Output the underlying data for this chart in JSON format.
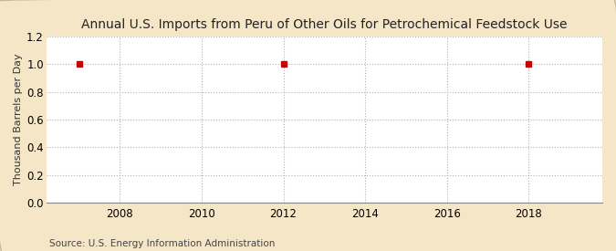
{
  "title": "Annual U.S. Imports from Peru of Other Oils for Petrochemical Feedstock Use",
  "ylabel": "Thousand Barrels per Day",
  "source": "Source: U.S. Energy Information Administration",
  "xlim": [
    2006.2,
    2019.8
  ],
  "ylim": [
    0.0,
    1.2
  ],
  "yticks": [
    0.0,
    0.2,
    0.4,
    0.6,
    0.8,
    1.0,
    1.2
  ],
  "xticks": [
    2008,
    2010,
    2012,
    2014,
    2016,
    2018
  ],
  "data_x": [
    2007,
    2012,
    2018
  ],
  "data_y": [
    1.0,
    1.0,
    1.0
  ],
  "marker_color": "#cc0000",
  "marker": "s",
  "marker_size": 4,
  "fig_background_color": "#f5e6c8",
  "plot_background_color": "#ffffff",
  "grid_color": "#b0b0b0",
  "spine_color": "#888888",
  "title_fontsize": 10,
  "axis_fontsize": 8,
  "tick_fontsize": 8.5,
  "source_fontsize": 7.5
}
